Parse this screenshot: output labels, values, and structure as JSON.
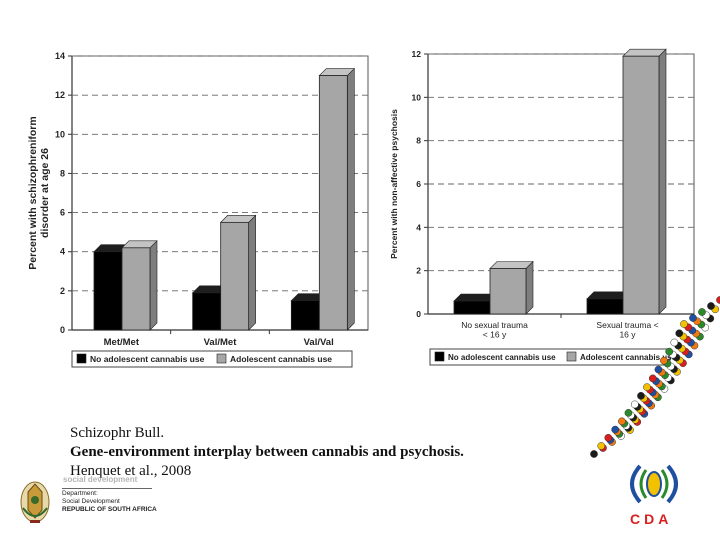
{
  "chart_data": [
    {
      "type": "bar",
      "title": "",
      "ylabel": "Percent with schizophreniform disorder at age 26",
      "xlabel": "",
      "ylim": [
        0,
        14
      ],
      "yticks": [
        "0",
        "2",
        "4",
        "6",
        "8",
        "10",
        "12",
        "14"
      ],
      "categories": [
        "Met/Met",
        "Val/Met",
        "Val/Val"
      ],
      "series": [
        {
          "name": "No adolescent cannabis use",
          "color": "#000000",
          "values": [
            4.0,
            1.9,
            1.5
          ]
        },
        {
          "name": "Adolescent cannabis use",
          "color": "#a6a6a6",
          "values": [
            4.2,
            5.5,
            13.0
          ]
        }
      ],
      "grid": true,
      "legend": "bottom"
    },
    {
      "type": "bar",
      "title": "",
      "ylabel": "Percent with non-affective psychosis",
      "xlabel": "",
      "ylim": [
        0,
        12
      ],
      "yticks": [
        "0",
        "2",
        "4",
        "6",
        "8",
        "10",
        "12"
      ],
      "categories": [
        [
          "No sexual trauma",
          "< 16 y"
        ],
        [
          "Sexual trauma <",
          "16 y"
        ]
      ],
      "series": [
        {
          "name": "No adolescent cannabis use",
          "color": "#000000",
          "values": [
            0.6,
            0.7
          ]
        },
        {
          "name": "Adolescent cannabis use",
          "color": "#a6a6a6",
          "values": [
            2.1,
            11.9
          ]
        }
      ],
      "grid": true,
      "legend": "bottom"
    }
  ],
  "caption": {
    "journal": "Schizophr Bull.",
    "title": "Gene-environment interplay between cannabis and psychosis.",
    "authors": "Henquet et al., 2008"
  },
  "footer": {
    "dept_line1": "Department:",
    "dept_line2": "Social Development",
    "dept_line3": "REPUBLIC OF SOUTH AFRICA",
    "dept_faint": "social development",
    "cda_label": "CDA"
  },
  "colors": {
    "no_use": "#000000",
    "use": "#a6a6a6",
    "cda_red": "#d82020",
    "cda_blue": "#1f4fa0",
    "cda_yellow": "#f2c100"
  }
}
